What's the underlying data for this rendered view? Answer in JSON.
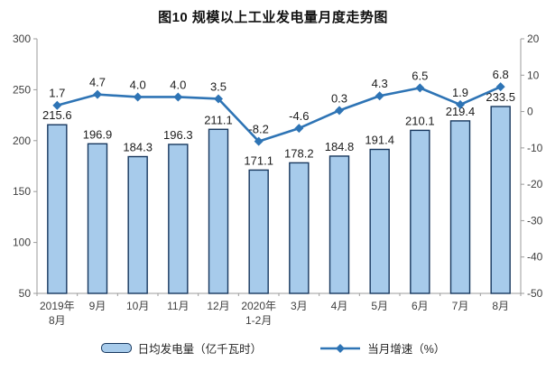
{
  "title": "图10 规模以上工业发电量月度走势图",
  "chart_data": {
    "type": "bar+line combo, dual axis",
    "categories": [
      [
        "2019年",
        "8月"
      ],
      [
        "9月"
      ],
      [
        "10月"
      ],
      [
        "11月"
      ],
      [
        "12月"
      ],
      [
        "2020年",
        "1-2月"
      ],
      [
        "3月"
      ],
      [
        "4月"
      ],
      [
        "5月"
      ],
      [
        "6月"
      ],
      [
        "7月"
      ],
      [
        "8月"
      ]
    ],
    "series": [
      {
        "name": "日均发电量（亿千瓦时）",
        "type": "bar",
        "axis": "left",
        "values": [
          215.6,
          196.9,
          184.3,
          196.3,
          211.1,
          171.1,
          178.2,
          184.8,
          191.4,
          210.1,
          219.4,
          233.5
        ],
        "labels": [
          "215.6",
          "196.9",
          "184.3",
          "196.3",
          "211.1",
          "171.1",
          "178.2",
          "184.8",
          "191.4",
          "210.1",
          "219.4",
          "233.5"
        ]
      },
      {
        "name": "当月增速（%）",
        "type": "line",
        "axis": "right",
        "values": [
          1.7,
          4.7,
          4.0,
          4.0,
          3.5,
          -8.2,
          -4.6,
          0.3,
          4.3,
          6.5,
          1.9,
          6.8
        ],
        "labels": [
          "1.7",
          "4.7",
          "4.0",
          "4.0",
          "3.5",
          "-8.2",
          "-4.6",
          "0.3",
          "4.3",
          "6.5",
          "1.9",
          "6.8"
        ]
      }
    ],
    "left_axis": {
      "min": 50,
      "max": 300,
      "step": 50,
      "tick_values": [
        300,
        250,
        200,
        150,
        100,
        50
      ],
      "tick_labels": [
        "300",
        "250",
        "200",
        "150",
        "100",
        "50"
      ]
    },
    "right_axis": {
      "min": -50,
      "max": 20,
      "step": 10,
      "tick_values": [
        20,
        10,
        0,
        -10,
        -20,
        -30,
        -40,
        -50
      ],
      "tick_labels": [
        "20",
        "10",
        "0",
        "-10",
        "-20",
        "-30",
        "-40",
        "-50"
      ]
    },
    "grid": "off",
    "legend_position": "bottom",
    "colors": {
      "bar_fill": "#A7CBEB",
      "bar_stroke": "#17375E",
      "line": "#2E74B5",
      "axis_line": "#9B9B9B",
      "tick_text": "#404040",
      "label_text": "#1C1C1C",
      "title_text": "#111111"
    }
  }
}
